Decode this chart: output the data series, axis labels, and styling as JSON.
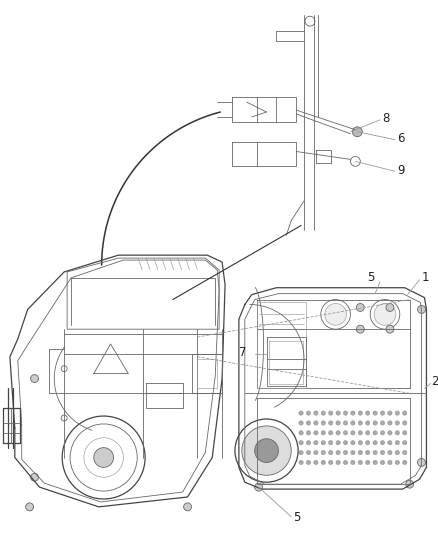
{
  "bg_color": "#ffffff",
  "fig_width": 4.38,
  "fig_height": 5.33,
  "dpi": 100,
  "line_color": "#444444",
  "thin_color": "#666666",
  "light_color": "#999999",
  "label_color": "#222222",
  "label_fs": 8.5
}
